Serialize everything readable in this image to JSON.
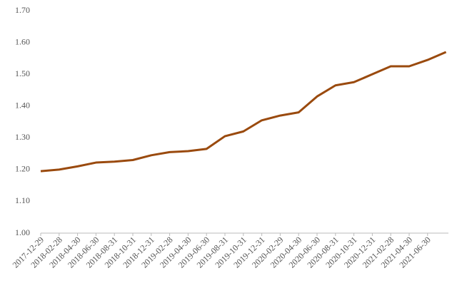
{
  "chart_data": {
    "type": "line",
    "categories": [
      "2017-12-29",
      "2018-02-28",
      "2018-04-30",
      "2018-06-30",
      "2018-08-31",
      "2018-10-31",
      "2018-12-31",
      "2019-02-28",
      "2019-04-30",
      "2019-06-30",
      "2019-08-31",
      "2019-10-31",
      "2019-12-31",
      "2020-02-29",
      "2020-04-30",
      "2020-06-30",
      "2020-08-31",
      "2020-10-31",
      "2020-12-31",
      "2021-02-28",
      "2021-04-30",
      "2021-06-30",
      null
    ],
    "series": [
      {
        "color": "#9a4a0e",
        "values": [
          1.195,
          1.2,
          1.21,
          1.222,
          1.225,
          1.23,
          1.245,
          1.255,
          1.258,
          1.265,
          1.305,
          1.32,
          1.355,
          1.37,
          1.38,
          1.43,
          1.465,
          1.475,
          1.5,
          1.525,
          1.525,
          1.545,
          1.57
        ]
      }
    ],
    "ylim": [
      1.0,
      1.7
    ],
    "yticks": [
      {
        "value": 1.0,
        "label": "1.00"
      },
      {
        "value": 1.1,
        "label": "1.10"
      },
      {
        "value": 1.2,
        "label": "1.20"
      },
      {
        "value": 1.3,
        "label": "1.30"
      },
      {
        "value": 1.4,
        "label": "1.40"
      },
      {
        "value": 1.5,
        "label": "1.50"
      },
      {
        "value": 1.6,
        "label": "1.60"
      },
      {
        "value": 1.7,
        "label": "1.70"
      }
    ],
    "grid": false
  }
}
